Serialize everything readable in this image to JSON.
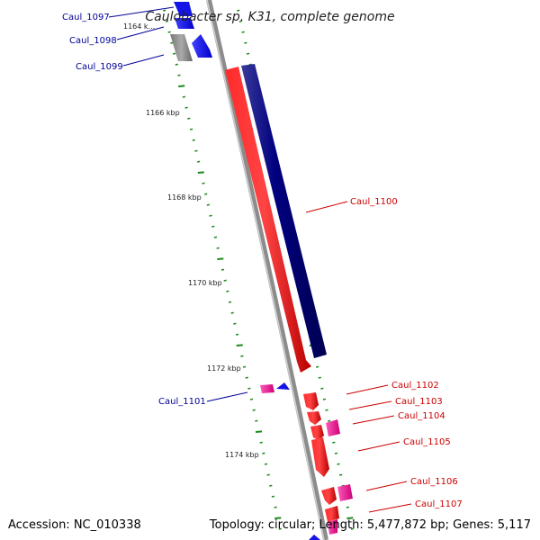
{
  "title": "Caulobacter sp. K31, complete genome",
  "footer": {
    "accession": "Accession: NC_010338",
    "topology": "Topology: circular; Length: 5,477,872 bp; Genes: 5,117"
  },
  "colors": {
    "forward_label": "#cc0000",
    "reverse_label": "#000099",
    "ruler": "#1a8a1a",
    "backbone": "#8c8c8c"
  },
  "ruler_labels": [
    {
      "text": "1164 k..."
    },
    {
      "text": "1166 kbp"
    },
    {
      "text": "1168 kbp"
    },
    {
      "text": "1170 kbp"
    },
    {
      "text": "1172 kbp"
    },
    {
      "text": "1174 kbp"
    }
  ],
  "genes": [
    {
      "name": "Caul_1097",
      "strand": "reverse",
      "color": "#1414e6"
    },
    {
      "name": "Caul_1098",
      "strand": "reverse",
      "color": "#1414e6"
    },
    {
      "name": "Caul_1099",
      "strand": "reverse",
      "color": "#1414e6"
    },
    {
      "name": "Caul_1100",
      "strand": "forward",
      "color": "#ee1111"
    },
    {
      "name": "Caul_1101",
      "strand": "reverse",
      "color": "#1414e6"
    },
    {
      "name": "Caul_1102",
      "strand": "forward",
      "color": "#ee1111"
    },
    {
      "name": "Caul_1103",
      "strand": "forward",
      "color": "#ee1111"
    },
    {
      "name": "Caul_1104",
      "strand": "forward",
      "color": "#ee1111"
    },
    {
      "name": "Caul_1105",
      "strand": "forward",
      "color": "#ee1111"
    },
    {
      "name": "Caul_1106",
      "strand": "forward",
      "color": "#ee1111"
    },
    {
      "name": "Caul_1107",
      "strand": "forward",
      "color": "#ee1111"
    }
  ]
}
